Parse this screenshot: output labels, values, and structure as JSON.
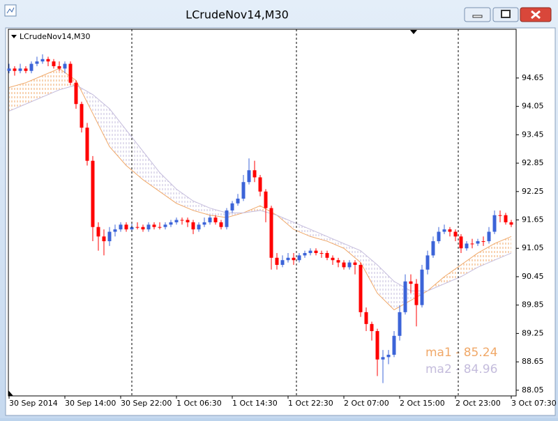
{
  "window": {
    "title": "LCrudeNov14,M30"
  },
  "chart_data": {
    "type": "candlestick",
    "title": "LCrudeNov14,M30",
    "up_color": "#3c64d8",
    "down_color": "#ff0000",
    "ohlc": [
      [
        94.8,
        94.95,
        94.75,
        94.85
      ],
      [
        94.85,
        94.9,
        94.7,
        94.8
      ],
      [
        94.8,
        94.95,
        94.75,
        94.85
      ],
      [
        94.85,
        94.9,
        94.75,
        94.8
      ],
      [
        94.8,
        95.0,
        94.75,
        94.95
      ],
      [
        94.95,
        95.1,
        94.9,
        95.0
      ],
      [
        95.0,
        95.15,
        94.95,
        95.05
      ],
      [
        95.05,
        95.1,
        94.9,
        95.0
      ],
      [
        95.0,
        95.05,
        94.85,
        94.9
      ],
      [
        94.9,
        95.0,
        94.8,
        94.85
      ],
      [
        94.85,
        95.0,
        94.75,
        94.95
      ],
      [
        94.95,
        95.0,
        94.5,
        94.55
      ],
      [
        94.55,
        94.6,
        94.0,
        94.1
      ],
      [
        94.1,
        94.15,
        93.5,
        93.6
      ],
      [
        93.6,
        93.7,
        92.8,
        92.9
      ],
      [
        92.9,
        93.0,
        91.2,
        91.5
      ],
      [
        91.5,
        91.6,
        91.0,
        91.3
      ],
      [
        91.3,
        91.45,
        90.9,
        91.2
      ],
      [
        91.2,
        91.5,
        91.1,
        91.4
      ],
      [
        91.4,
        91.55,
        91.3,
        91.45
      ],
      [
        91.45,
        91.6,
        91.4,
        91.55
      ],
      [
        91.55,
        91.6,
        91.4,
        91.45
      ],
      [
        91.45,
        91.6,
        91.4,
        91.5
      ],
      [
        91.5,
        91.6,
        91.45,
        91.5
      ],
      [
        91.5,
        91.55,
        91.4,
        91.45
      ],
      [
        91.45,
        91.6,
        91.4,
        91.55
      ],
      [
        91.55,
        91.6,
        91.45,
        91.5
      ],
      [
        91.5,
        91.6,
        91.45,
        91.5
      ],
      [
        91.5,
        91.6,
        91.45,
        91.55
      ],
      [
        91.55,
        91.65,
        91.5,
        91.6
      ],
      [
        91.6,
        91.7,
        91.55,
        91.65
      ],
      [
        91.65,
        91.7,
        91.55,
        91.65
      ],
      [
        91.65,
        91.7,
        91.5,
        91.6
      ],
      [
        91.6,
        91.65,
        91.35,
        91.45
      ],
      [
        91.45,
        91.6,
        91.4,
        91.55
      ],
      [
        91.55,
        91.7,
        91.5,
        91.6
      ],
      [
        91.6,
        91.75,
        91.55,
        91.7
      ],
      [
        91.7,
        91.75,
        91.55,
        91.6
      ],
      [
        91.6,
        91.65,
        91.45,
        91.5
      ],
      [
        91.5,
        91.9,
        91.45,
        91.85
      ],
      [
        91.85,
        92.05,
        91.8,
        92.0
      ],
      [
        92.0,
        92.2,
        91.95,
        92.1
      ],
      [
        92.1,
        92.6,
        92.05,
        92.45
      ],
      [
        92.45,
        92.95,
        92.4,
        92.7
      ],
      [
        92.7,
        92.9,
        92.45,
        92.55
      ],
      [
        92.55,
        92.6,
        92.15,
        92.25
      ],
      [
        92.25,
        92.3,
        91.6,
        91.9
      ],
      [
        91.9,
        91.95,
        90.6,
        90.85
      ],
      [
        90.85,
        90.95,
        90.6,
        90.7
      ],
      [
        90.7,
        90.9,
        90.65,
        90.8
      ],
      [
        90.8,
        90.95,
        90.75,
        90.85
      ],
      [
        90.85,
        90.95,
        90.7,
        90.8
      ],
      [
        90.8,
        90.95,
        90.75,
        90.9
      ],
      [
        90.9,
        91.0,
        90.85,
        90.95
      ],
      [
        90.95,
        91.05,
        90.9,
        91.0
      ],
      [
        91.0,
        91.05,
        90.9,
        90.95
      ],
      [
        90.95,
        91.0,
        90.85,
        90.95
      ],
      [
        90.95,
        91.0,
        90.8,
        90.85
      ],
      [
        90.85,
        90.9,
        90.7,
        90.8
      ],
      [
        90.8,
        90.85,
        90.65,
        90.75
      ],
      [
        90.75,
        90.8,
        90.6,
        90.65
      ],
      [
        90.65,
        90.8,
        90.6,
        90.75
      ],
      [
        90.75,
        90.8,
        90.5,
        90.7
      ],
      [
        90.7,
        90.75,
        89.6,
        89.7
      ],
      [
        89.7,
        89.8,
        89.3,
        89.45
      ],
      [
        89.45,
        89.5,
        89.1,
        89.3
      ],
      [
        89.3,
        89.35,
        88.35,
        88.7
      ],
      [
        88.7,
        88.9,
        88.2,
        88.75
      ],
      [
        88.75,
        88.9,
        88.6,
        88.8
      ],
      [
        88.8,
        89.3,
        88.75,
        89.2
      ],
      [
        89.2,
        89.85,
        89.1,
        89.7
      ],
      [
        89.7,
        90.5,
        89.65,
        90.35
      ],
      [
        90.35,
        90.5,
        90.1,
        90.3
      ],
      [
        90.3,
        90.4,
        89.4,
        89.85
      ],
      [
        89.85,
        90.7,
        89.8,
        90.6
      ],
      [
        90.6,
        91.0,
        90.5,
        90.9
      ],
      [
        90.9,
        91.3,
        90.85,
        91.2
      ],
      [
        91.2,
        91.5,
        91.15,
        91.4
      ],
      [
        91.4,
        91.55,
        91.35,
        91.45
      ],
      [
        91.45,
        91.5,
        91.3,
        91.4
      ],
      [
        91.4,
        91.45,
        91.2,
        91.3
      ],
      [
        91.3,
        91.35,
        90.95,
        91.05
      ],
      [
        91.05,
        91.2,
        91.0,
        91.15
      ],
      [
        91.15,
        91.25,
        91.05,
        91.15
      ],
      [
        91.15,
        91.25,
        91.1,
        91.2
      ],
      [
        91.2,
        91.3,
        91.1,
        91.2
      ],
      [
        91.2,
        91.5,
        91.15,
        91.4
      ],
      [
        91.4,
        91.85,
        91.35,
        91.75
      ],
      [
        91.75,
        91.85,
        91.6,
        91.75
      ],
      [
        91.75,
        91.8,
        91.55,
        91.6
      ],
      [
        91.6,
        91.65,
        91.5,
        91.55
      ]
    ],
    "series": [
      {
        "name": "ma1 - 85.24",
        "color": "#f0a868",
        "x": [
          0,
          3,
          6,
          9,
          12,
          15,
          18,
          21,
          24,
          27,
          30,
          33,
          36,
          39,
          42,
          45,
          48,
          51,
          54,
          57,
          60,
          63,
          66,
          69,
          72,
          75,
          78,
          81,
          84,
          87,
          90
        ],
        "values": [
          94.45,
          94.55,
          94.7,
          94.85,
          94.6,
          93.9,
          93.2,
          92.8,
          92.5,
          92.25,
          92.0,
          91.85,
          91.75,
          91.7,
          91.8,
          91.95,
          91.75,
          91.45,
          91.3,
          91.2,
          91.05,
          90.75,
          90.1,
          89.75,
          89.95,
          90.15,
          90.45,
          90.7,
          90.95,
          91.15,
          91.3
        ]
      },
      {
        "name": "ma2 - 84.96",
        "color": "#c4bcdc",
        "x": [
          0,
          3,
          6,
          9,
          12,
          15,
          18,
          21,
          24,
          27,
          30,
          33,
          36,
          39,
          42,
          45,
          48,
          51,
          54,
          57,
          60,
          63,
          66,
          69,
          72,
          75,
          78,
          81,
          84,
          87,
          90
        ],
        "values": [
          93.95,
          94.1,
          94.25,
          94.4,
          94.5,
          94.3,
          94.0,
          93.55,
          93.1,
          92.65,
          92.3,
          92.05,
          91.9,
          91.8,
          91.8,
          91.85,
          91.75,
          91.6,
          91.45,
          91.3,
          91.15,
          91.0,
          90.7,
          90.35,
          90.15,
          90.15,
          90.3,
          90.45,
          90.65,
          90.8,
          90.95
        ]
      }
    ],
    "separators": [
      22,
      51.5,
      80.5
    ],
    "xlim": [
      -0.125,
      90.875
    ],
    "xticks": [
      {
        "value": 0,
        "label": "30 Sep 2014"
      },
      {
        "value": 10,
        "label": "30 Sep 14:00"
      },
      {
        "value": 20,
        "label": "30 Sep 22:00"
      },
      {
        "value": 30,
        "label": "1 Oct 06:30"
      },
      {
        "value": 40,
        "label": "1 Oct 14:30"
      },
      {
        "value": 50,
        "label": "1 Oct 22:30"
      },
      {
        "value": 60,
        "label": "2 Oct 07:00"
      },
      {
        "value": 70,
        "label": "2 Oct 15:00"
      },
      {
        "value": 80,
        "label": "2 Oct 23:00"
      },
      {
        "value": 90,
        "label": "3 Oct 07:30"
      }
    ],
    "ylim": [
      87.93,
      95.68
    ],
    "yticks": [
      88.05,
      88.65,
      89.25,
      89.85,
      90.45,
      91.05,
      91.65,
      92.25,
      92.85,
      93.45,
      94.05,
      94.65
    ]
  }
}
